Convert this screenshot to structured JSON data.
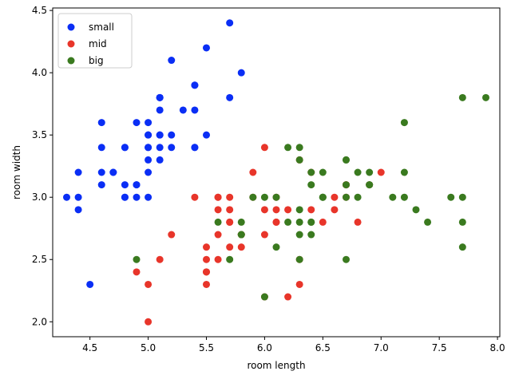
{
  "chart_data": {
    "type": "scatter",
    "title": "",
    "xlabel": "room length",
    "ylabel": "room width",
    "xlim": [
      4.18,
      8.02
    ],
    "ylim": [
      1.88,
      4.52
    ],
    "xticks": [
      "4.5",
      "5.0",
      "5.5",
      "6.0",
      "6.5",
      "7.0",
      "7.5",
      "8.0"
    ],
    "yticks": [
      "2.0",
      "2.5",
      "3.0",
      "3.5",
      "4.0",
      "4.5"
    ],
    "legend_position": "top-left",
    "series": [
      {
        "name": "small",
        "color": "#0a2ef5",
        "points": [
          [
            5.1,
            3.5
          ],
          [
            4.9,
            3.0
          ],
          [
            4.7,
            3.2
          ],
          [
            4.6,
            3.1
          ],
          [
            5.0,
            3.6
          ],
          [
            5.4,
            3.9
          ],
          [
            4.6,
            3.4
          ],
          [
            5.0,
            3.4
          ],
          [
            4.4,
            2.9
          ],
          [
            4.9,
            3.1
          ],
          [
            5.4,
            3.7
          ],
          [
            4.8,
            3.4
          ],
          [
            4.8,
            3.0
          ],
          [
            4.3,
            3.0
          ],
          [
            5.8,
            4.0
          ],
          [
            5.7,
            4.4
          ],
          [
            5.4,
            3.9
          ],
          [
            5.1,
            3.5
          ],
          [
            5.7,
            3.8
          ],
          [
            5.1,
            3.8
          ],
          [
            5.4,
            3.4
          ],
          [
            5.1,
            3.7
          ],
          [
            4.6,
            3.6
          ],
          [
            5.1,
            3.3
          ],
          [
            4.8,
            3.4
          ],
          [
            5.0,
            3.0
          ],
          [
            5.0,
            3.4
          ],
          [
            5.2,
            3.5
          ],
          [
            5.2,
            3.4
          ],
          [
            4.7,
            3.2
          ],
          [
            4.8,
            3.1
          ],
          [
            5.4,
            3.4
          ],
          [
            5.2,
            4.1
          ],
          [
            5.5,
            4.2
          ],
          [
            4.9,
            3.1
          ],
          [
            5.0,
            3.2
          ],
          [
            5.5,
            3.5
          ],
          [
            4.9,
            3.6
          ],
          [
            4.4,
            3.0
          ],
          [
            5.1,
            3.4
          ],
          [
            5.0,
            3.5
          ],
          [
            4.5,
            2.3
          ],
          [
            4.4,
            3.2
          ],
          [
            5.0,
            3.5
          ],
          [
            5.1,
            3.8
          ],
          [
            4.8,
            3.0
          ],
          [
            5.1,
            3.8
          ],
          [
            4.6,
            3.2
          ],
          [
            5.3,
            3.7
          ],
          [
            5.0,
            3.3
          ]
        ]
      },
      {
        "name": "mid",
        "color": "#e8352a",
        "points": [
          [
            7.0,
            3.2
          ],
          [
            6.4,
            3.2
          ],
          [
            6.9,
            3.1
          ],
          [
            5.5,
            2.3
          ],
          [
            6.5,
            2.8
          ],
          [
            5.7,
            2.8
          ],
          [
            6.3,
            3.3
          ],
          [
            4.9,
            2.4
          ],
          [
            6.6,
            2.9
          ],
          [
            5.2,
            2.7
          ],
          [
            5.0,
            2.0
          ],
          [
            5.9,
            3.0
          ],
          [
            6.0,
            2.2
          ],
          [
            6.1,
            2.9
          ],
          [
            5.6,
            2.9
          ],
          [
            6.7,
            3.1
          ],
          [
            5.6,
            3.0
          ],
          [
            5.8,
            2.7
          ],
          [
            6.2,
            2.2
          ],
          [
            5.6,
            2.5
          ],
          [
            5.9,
            3.2
          ],
          [
            6.1,
            2.8
          ],
          [
            6.3,
            2.5
          ],
          [
            6.1,
            2.8
          ],
          [
            6.4,
            2.9
          ],
          [
            6.6,
            3.0
          ],
          [
            6.8,
            2.8
          ],
          [
            6.7,
            3.0
          ],
          [
            6.0,
            2.9
          ],
          [
            5.7,
            2.6
          ],
          [
            5.5,
            2.4
          ],
          [
            5.5,
            2.4
          ],
          [
            5.8,
            2.7
          ],
          [
            6.0,
            2.7
          ],
          [
            5.4,
            3.0
          ],
          [
            6.0,
            3.4
          ],
          [
            6.7,
            3.1
          ],
          [
            6.3,
            2.3
          ],
          [
            5.6,
            3.0
          ],
          [
            5.5,
            2.5
          ],
          [
            5.5,
            2.6
          ],
          [
            6.1,
            3.0
          ],
          [
            5.8,
            2.6
          ],
          [
            5.0,
            2.3
          ],
          [
            5.6,
            2.7
          ],
          [
            5.7,
            3.0
          ],
          [
            5.7,
            2.9
          ],
          [
            6.2,
            2.9
          ],
          [
            5.1,
            2.5
          ],
          [
            5.7,
            2.8
          ]
        ]
      },
      {
        "name": "big",
        "color": "#3a7a1f",
        "points": [
          [
            6.3,
            3.3
          ],
          [
            5.8,
            2.7
          ],
          [
            7.1,
            3.0
          ],
          [
            6.3,
            2.9
          ],
          [
            6.5,
            3.0
          ],
          [
            7.6,
            3.0
          ],
          [
            4.9,
            2.5
          ],
          [
            7.3,
            2.9
          ],
          [
            6.7,
            2.5
          ],
          [
            7.2,
            3.6
          ],
          [
            6.5,
            3.2
          ],
          [
            6.4,
            2.7
          ],
          [
            6.8,
            3.0
          ],
          [
            5.7,
            2.5
          ],
          [
            5.8,
            2.8
          ],
          [
            6.4,
            3.2
          ],
          [
            6.5,
            3.0
          ],
          [
            7.7,
            3.8
          ],
          [
            7.7,
            2.6
          ],
          [
            6.0,
            2.2
          ],
          [
            6.9,
            3.2
          ],
          [
            5.6,
            2.8
          ],
          [
            7.7,
            2.8
          ],
          [
            6.3,
            2.7
          ],
          [
            6.7,
            3.3
          ],
          [
            7.2,
            3.2
          ],
          [
            6.2,
            2.8
          ],
          [
            6.1,
            3.0
          ],
          [
            6.4,
            2.8
          ],
          [
            7.2,
            3.0
          ],
          [
            7.4,
            2.8
          ],
          [
            7.9,
            3.8
          ],
          [
            6.4,
            2.8
          ],
          [
            6.3,
            2.8
          ],
          [
            6.1,
            2.6
          ],
          [
            7.7,
            3.0
          ],
          [
            6.3,
            3.4
          ],
          [
            6.4,
            3.1
          ],
          [
            6.0,
            3.0
          ],
          [
            6.9,
            3.1
          ],
          [
            6.7,
            3.1
          ],
          [
            6.9,
            3.1
          ],
          [
            5.8,
            2.7
          ],
          [
            6.8,
            3.2
          ],
          [
            6.7,
            3.3
          ],
          [
            6.7,
            3.0
          ],
          [
            6.3,
            2.5
          ],
          [
            6.5,
            3.0
          ],
          [
            6.2,
            3.4
          ],
          [
            5.9,
            3.0
          ]
        ]
      }
    ]
  }
}
